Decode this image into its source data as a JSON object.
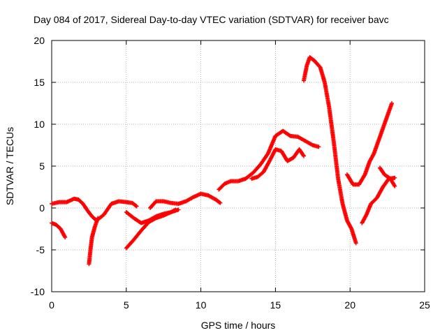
{
  "chart_data": {
    "type": "scatter",
    "title": "Day 084 of 2017, Sidereal Day-to-day VTEC variation (SDTVAR) for receiver bavc",
    "xlabel": "GPS time / hours",
    "ylabel": "SDTVAR / TECUs",
    "xlim": [
      0,
      25
    ],
    "ylim": [
      -10,
      20
    ],
    "x_ticks": [
      0,
      5,
      10,
      15,
      20,
      25
    ],
    "y_ticks": [
      -10,
      -5,
      0,
      5,
      10,
      15,
      20
    ],
    "x_tick_labels": [
      "0",
      "5",
      "10",
      "15",
      "20",
      "25"
    ],
    "y_tick_labels": [
      "-10",
      "-5",
      "0",
      "5",
      "10",
      "15",
      "20"
    ],
    "grid": true,
    "legend": "none",
    "marker": "+",
    "color": "#ff0000",
    "series": [
      {
        "x": [
          0.0,
          0.5,
          1.0,
          1.5,
          1.8,
          2.1,
          2.4,
          2.7,
          3.0,
          3.5,
          4.0,
          4.5,
          5.0,
          5.4,
          5.7
        ],
        "y": [
          0.5,
          0.7,
          0.7,
          1.1,
          1.0,
          0.5,
          -0.3,
          -1.0,
          -1.5,
          -0.8,
          0.5,
          0.8,
          0.7,
          0.6,
          0.2
        ]
      },
      {
        "x": [
          0.0,
          0.3,
          0.6,
          0.9
        ],
        "y": [
          -1.8,
          -2.0,
          -2.5,
          -3.5
        ]
      },
      {
        "x": [
          2.5,
          2.6,
          2.7,
          2.9,
          3.1
        ],
        "y": [
          -6.7,
          -5.0,
          -3.5,
          -2.2,
          -1.2
        ]
      },
      {
        "x": [
          5.0,
          5.5,
          6.0,
          6.5,
          7.0,
          7.5,
          8.0,
          8.3
        ],
        "y": [
          -4.8,
          -3.8,
          -2.7,
          -1.7,
          -1.2,
          -0.9,
          -0.5,
          -0.2
        ]
      },
      {
        "x": [
          5.0,
          5.5,
          6.0,
          6.5,
          7.0,
          7.5,
          8.0,
          8.5
        ],
        "y": [
          -0.5,
          -1.2,
          -1.8,
          -1.5,
          -1.0,
          -0.7,
          -0.5,
          -0.2
        ]
      },
      {
        "x": [
          6.6,
          7.0,
          7.5,
          8.0,
          8.5,
          9.0,
          9.5,
          10.0,
          10.5,
          11.0,
          11.3
        ],
        "y": [
          0.0,
          0.8,
          0.8,
          0.6,
          0.5,
          0.8,
          1.3,
          1.7,
          1.5,
          1.0,
          0.6
        ]
      },
      {
        "x": [
          11.2,
          11.6,
          12.0,
          12.5,
          13.0,
          13.5,
          14.0,
          14.5,
          15.0,
          15.5,
          16.0,
          16.5,
          17.0,
          17.5,
          17.9
        ],
        "y": [
          2.2,
          2.9,
          3.2,
          3.2,
          3.5,
          4.2,
          5.2,
          6.5,
          8.6,
          9.2,
          8.6,
          8.5,
          8.0,
          7.5,
          7.3
        ]
      },
      {
        "x": [
          13.4,
          13.8,
          14.2,
          14.6,
          15.0,
          15.4,
          15.8,
          16.2,
          16.6,
          16.9
        ],
        "y": [
          3.5,
          3.7,
          4.3,
          5.6,
          7.0,
          6.8,
          5.6,
          6.0,
          7.0,
          6.2
        ]
      },
      {
        "x": [
          16.9,
          17.1,
          17.3,
          17.6,
          18.0,
          18.3,
          18.6,
          18.9,
          19.2,
          19.5,
          19.8,
          20.1,
          20.4
        ],
        "y": [
          15.2,
          17.0,
          18.0,
          17.6,
          16.8,
          15.0,
          12.0,
          8.0,
          3.5,
          0.5,
          -1.5,
          -2.5,
          -4.2
        ]
      },
      {
        "x": [
          19.8,
          20.2,
          20.6,
          21.0,
          21.3,
          21.6,
          22.0,
          22.4,
          22.8
        ],
        "y": [
          4.0,
          2.8,
          2.8,
          4.0,
          5.5,
          6.5,
          8.5,
          10.5,
          12.5
        ]
      },
      {
        "x": [
          20.8,
          21.1,
          21.4,
          21.8,
          22.2,
          22.6,
          23.0
        ],
        "y": [
          -1.8,
          -0.8,
          0.5,
          1.2,
          2.5,
          3.5,
          3.6
        ]
      },
      {
        "x": [
          22.0,
          22.3,
          22.7,
          23.0
        ],
        "y": [
          4.8,
          4.0,
          3.5,
          2.6
        ]
      }
    ]
  }
}
